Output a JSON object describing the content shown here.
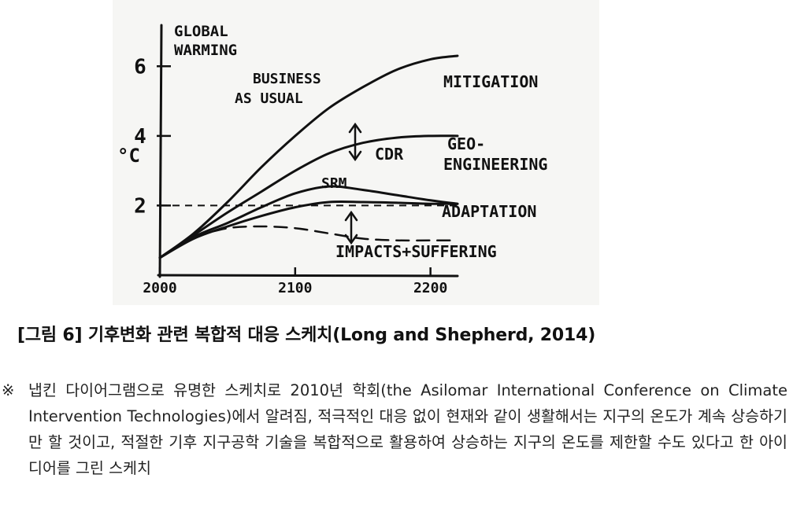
{
  "chart_data": {
    "type": "line",
    "title": "",
    "ylabel_lines": [
      "GLOBAL",
      "WARMING"
    ],
    "yunit": "°C",
    "x_ticks": [
      "2000",
      "2100",
      "2200"
    ],
    "y_ticks": [
      "6",
      "4",
      "2"
    ],
    "xlim": [
      2000,
      2220
    ],
    "ylim": [
      0,
      7
    ],
    "reference_line": {
      "y": 2,
      "style": "dashed"
    },
    "series": [
      {
        "name": "BUSINESS AS USUAL",
        "x": [
          2000,
          2025,
          2050,
          2075,
          2100,
          2125,
          2150,
          2175,
          2200,
          2220
        ],
        "y": [
          0.5,
          1.2,
          2.1,
          3.1,
          4.0,
          4.8,
          5.4,
          5.9,
          6.2,
          6.3
        ]
      },
      {
        "name": "",
        "x": [
          2000,
          2025,
          2050,
          2075,
          2100,
          2125,
          2150,
          2175,
          2200,
          2220
        ],
        "y": [
          0.5,
          1.15,
          1.8,
          2.4,
          3.0,
          3.5,
          3.8,
          3.95,
          4.0,
          4.0
        ]
      },
      {
        "name": "SRM",
        "x": [
          2000,
          2025,
          2050,
          2075,
          2100,
          2125,
          2150,
          2175,
          2200,
          2220
        ],
        "y": [
          0.5,
          1.1,
          1.5,
          1.95,
          2.35,
          2.55,
          2.45,
          2.3,
          2.15,
          2.05
        ]
      },
      {
        "name": "",
        "x": [
          2000,
          2025,
          2050,
          2075,
          2100,
          2125,
          2150,
          2175,
          2200,
          2220
        ],
        "y": [
          0.5,
          1.05,
          1.4,
          1.7,
          1.95,
          2.1,
          2.1,
          2.08,
          2.05,
          2.05
        ]
      },
      {
        "name": "IMPACTS+SUFFERING",
        "style": "dashed",
        "x": [
          2025,
          2050,
          2075,
          2100,
          2125,
          2150,
          2175,
          2200,
          2220
        ],
        "y": [
          1.1,
          1.35,
          1.4,
          1.35,
          1.2,
          1.05,
          1.0,
          1.0,
          1.0
        ]
      }
    ],
    "annotations": [
      "BUSINESS",
      "AS USUAL",
      "MITIGATION",
      "CDR",
      "GEO-",
      "ENGINEERING",
      "SRM",
      "ADAPTATION",
      "IMPACTS+SUFFERING"
    ]
  },
  "caption": "[그림 6] 기후변화 관련 복합적 대응 스케치(Long and Shepherd, 2014)",
  "note_mark": "※",
  "note_text": "냅킨 다이어그램으로 유명한 스케치로 2010년 학회(the Asilomar International Conference on Climate Intervention Technologies)에서 알려짐, 적극적인 대응 없이 현재와 같이 생활해서는 지구의 온도가 계속 상승하기만 할 것이고, 적절한 기후 지구공학 기술을 복합적으로 활용하여 상승하는 지구의 온도를 제한할 수도 있다고 한 아이디어를 그린 스케치"
}
